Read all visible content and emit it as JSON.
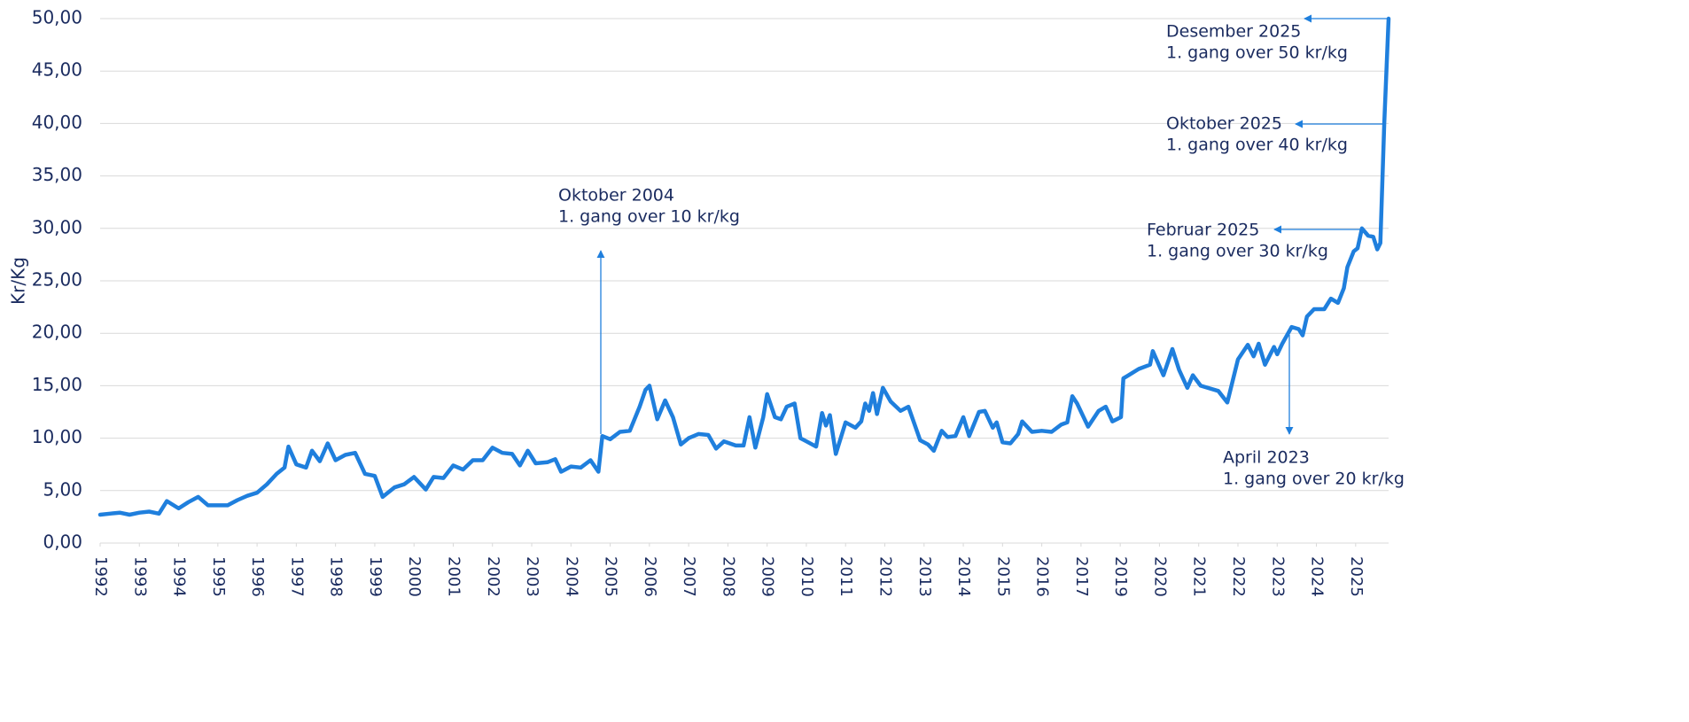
{
  "chart_data": {
    "type": "line",
    "y_label": "Kr/Kg",
    "x": [
      1992.0,
      1992.25,
      1992.5,
      1992.75,
      1993.0,
      1993.25,
      1993.5,
      1993.7,
      1994.0,
      1994.25,
      1994.5,
      1994.75,
      1995.0,
      1995.25,
      1995.5,
      1995.75,
      1996.0,
      1996.25,
      1996.5,
      1996.7,
      1996.8,
      1997.0,
      1997.25,
      1997.4,
      1997.6,
      1997.8,
      1998.0,
      1998.25,
      1998.5,
      1998.75,
      1999.0,
      1999.2,
      1999.5,
      1999.75,
      2000.0,
      2000.3,
      2000.5,
      2000.75,
      2001.0,
      2001.25,
      2001.5,
      2001.75,
      2002.0,
      2002.25,
      2002.5,
      2002.7,
      2002.9,
      2003.1,
      2003.4,
      2003.6,
      2003.75,
      2004.0,
      2004.25,
      2004.5,
      2004.7,
      2004.8,
      2005.0,
      2005.25,
      2005.5,
      2005.75,
      2005.9,
      2006.0,
      2006.2,
      2006.4,
      2006.6,
      2006.8,
      2007.0,
      2007.25,
      2007.5,
      2007.7,
      2007.9,
      2008.2,
      2008.4,
      2008.55,
      2008.7,
      2008.9,
      2009.0,
      2009.2,
      2009.35,
      2009.5,
      2009.7,
      2009.85,
      2010.0,
      2010.25,
      2010.4,
      2010.5,
      2010.6,
      2010.75,
      2011.0,
      2011.25,
      2011.4,
      2011.5,
      2011.6,
      2011.7,
      2011.8,
      2011.95,
      2012.15,
      2012.4,
      2012.6,
      2012.9,
      2013.1,
      2013.25,
      2013.45,
      2013.6,
      2013.8,
      2014.0,
      2014.15,
      2014.4,
      2014.55,
      2014.75,
      2014.85,
      2015.0,
      2015.2,
      2015.4,
      2015.5,
      2015.75,
      2016.0,
      2016.25,
      2016.5,
      2016.65,
      2016.78,
      2016.9,
      2017.18,
      2017.45,
      2017.63,
      2017.8,
      2018.02,
      2018.08,
      2018.3,
      2018.47,
      2018.76,
      2018.83,
      2019.1,
      2019.33,
      2019.5,
      2019.71,
      2019.85,
      2020.05,
      2020.5,
      2020.73,
      2021.0,
      2021.25,
      2021.4,
      2021.53,
      2021.69,
      2021.92,
      2022.0,
      2022.13,
      2022.37,
      2022.55,
      2022.65,
      2022.76,
      2022.94,
      2023.2,
      2023.37,
      2023.55,
      2023.7,
      2023.79,
      2023.95,
      2024.05,
      2024.16,
      2024.32,
      2024.45,
      2024.55,
      2024.63,
      2024.73,
      2024.84
    ],
    "values": [
      2.7,
      2.8,
      2.9,
      2.7,
      2.9,
      3.0,
      2.8,
      4.0,
      3.3,
      3.9,
      4.4,
      3.6,
      3.6,
      3.6,
      4.1,
      4.5,
      4.8,
      5.6,
      6.6,
      7.2,
      9.2,
      7.5,
      7.2,
      8.8,
      7.8,
      9.5,
      7.9,
      8.4,
      8.6,
      6.6,
      6.4,
      4.4,
      5.3,
      5.6,
      6.3,
      5.1,
      6.3,
      6.2,
      7.4,
      7.0,
      7.9,
      7.9,
      9.1,
      8.6,
      8.5,
      7.4,
      8.8,
      7.6,
      7.7,
      8.0,
      6.8,
      7.3,
      7.2,
      7.9,
      6.8,
      10.2,
      9.9,
      10.6,
      10.7,
      13.0,
      14.6,
      15.0,
      11.8,
      13.6,
      12.0,
      9.4,
      10.0,
      10.4,
      10.3,
      9.0,
      9.7,
      9.3,
      9.3,
      12.0,
      9.1,
      12.0,
      14.2,
      12.0,
      11.8,
      13.0,
      13.3,
      10.0,
      9.7,
      9.2,
      12.4,
      11.2,
      12.2,
      8.5,
      11.5,
      11.0,
      11.6,
      13.3,
      12.6,
      14.3,
      12.3,
      14.8,
      13.5,
      12.6,
      13.0,
      9.8,
      9.4,
      8.8,
      10.7,
      10.1,
      10.2,
      12.0,
      10.2,
      12.5,
      12.6,
      11.0,
      11.5,
      9.6,
      9.5,
      10.4,
      11.6,
      10.6,
      10.7,
      10.6,
      11.3,
      11.5,
      14.0,
      13.3,
      11.1,
      12.6,
      13.0,
      11.6,
      12.0,
      15.7,
      16.2,
      16.6,
      17.0,
      18.3,
      16.0,
      18.5,
      16.5,
      14.8,
      16.0,
      15.0,
      14.5,
      13.4,
      17.5,
      18.9,
      17.8,
      19.0,
      17.0,
      18.7,
      18.0,
      19.0,
      20.6,
      20.4,
      19.8,
      21.6,
      22.3,
      22.3,
      23.3,
      22.9,
      24.3,
      26.3,
      27.8,
      28.1,
      30.0,
      29.3,
      29.2,
      28.0,
      28.6,
      40.0,
      50.0
    ],
    "color": "#1f7fdd",
    "xlim": [
      1992,
      2024.84
    ],
    "xticks": [
      1992,
      1993,
      1994,
      1995,
      1996,
      1997,
      1998,
      1999,
      2000,
      2001,
      2002,
      2003,
      2004,
      2005,
      2006,
      2007,
      2008,
      2009,
      2010,
      2011,
      2012,
      2013,
      2014,
      2015,
      2016,
      2017,
      {
        "value": 2018,
        "label": "2019"
      },
      {
        "value": 2019,
        "label": "2020"
      },
      {
        "value": 2020,
        "label": "2021"
      },
      {
        "value": 2021,
        "label": "2022"
      },
      {
        "value": 2022,
        "label": "2023"
      },
      {
        "value": 2023,
        "label": "2024"
      },
      {
        "value": 2024,
        "label": "2025"
      }
    ],
    "ylim": [
      0,
      50
    ],
    "yticks": [
      {
        "value": 0,
        "label": "0,00"
      },
      {
        "value": 5,
        "label": "5,00"
      },
      {
        "value": 10,
        "label": "10,00"
      },
      {
        "value": 15,
        "label": "15,00"
      },
      {
        "value": 20,
        "label": "20,00"
      },
      {
        "value": 25,
        "label": "25,00"
      },
      {
        "value": 30,
        "label": "30,00"
      },
      {
        "value": 35,
        "label": "35,00"
      },
      {
        "value": 40,
        "label": "40,00"
      },
      {
        "value": 45,
        "label": "45,00"
      },
      {
        "value": 50,
        "label": "50,00"
      }
    ],
    "grid": true,
    "annotations": [
      {
        "lines": [
          "Oktober 2004",
          "1. gang over 10 kr/kg"
        ]
      },
      {
        "lines": [
          "Desember 2025",
          "1. gang over 50 kr/kg"
        ]
      },
      {
        "lines": [
          "Oktober 2025",
          "1. gang over 40 kr/kg"
        ]
      },
      {
        "lines": [
          "Februar 2025",
          "1. gang over 30 kr/kg"
        ]
      },
      {
        "lines": [
          "April 2023",
          "1. gang over 20 kr/kg"
        ]
      }
    ]
  }
}
